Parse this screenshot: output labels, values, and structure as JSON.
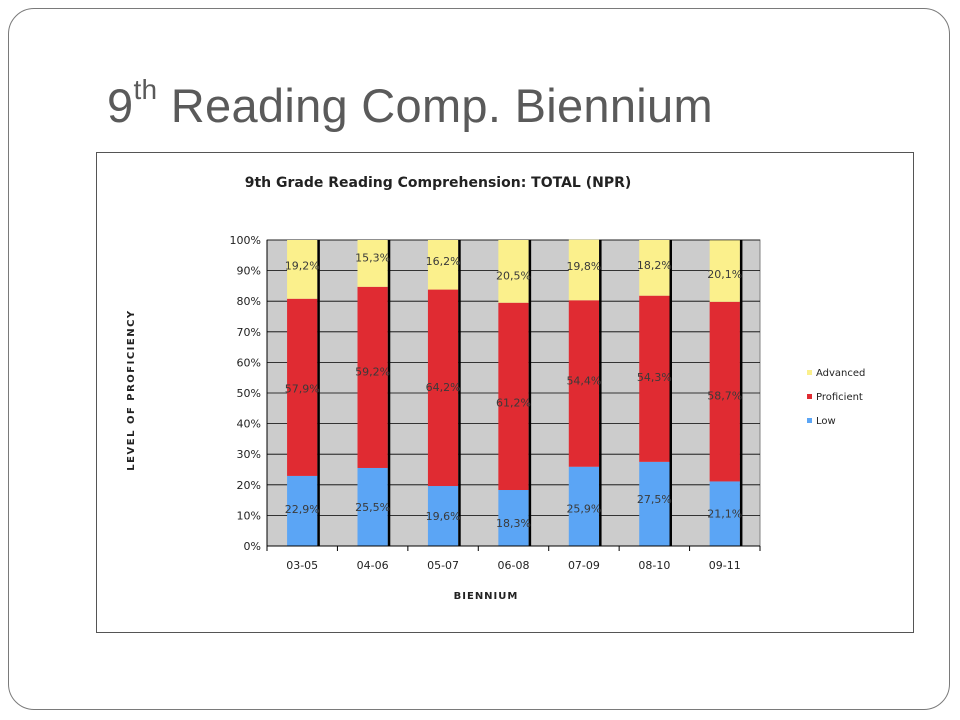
{
  "slide": {
    "title_main": "9",
    "title_sup": "th",
    "title_rest": " Reading Comp. Biennium"
  },
  "chart_data": {
    "type": "bar",
    "stacked": true,
    "percent_stacked": true,
    "title": "9th Grade Reading Comprehension:  TOTAL (NPR)",
    "xlabel": "BIENNIUM",
    "ylabel": "LEVEL OF PROFICIENCY",
    "ylim": [
      0,
      100
    ],
    "y_ticks": [
      "0%",
      "10%",
      "20%",
      "30%",
      "40%",
      "50%",
      "60%",
      "70%",
      "80%",
      "90%",
      "100%"
    ],
    "categories": [
      "03-05",
      "04-06",
      "05-07",
      "06-08",
      "07-09",
      "08-10",
      "09-11"
    ],
    "series": [
      {
        "name": "Low",
        "color": "#5ba5f5",
        "values": [
          22.9,
          25.5,
          19.6,
          18.3,
          25.9,
          27.5,
          21.1
        ],
        "labels": [
          "22,9%",
          "25,5%",
          "19,6%",
          "18,3%",
          "25,9%",
          "27,5%",
          "21,1%"
        ]
      },
      {
        "name": "Proficient",
        "color": "#e02b32",
        "values": [
          57.9,
          59.2,
          64.2,
          61.2,
          54.4,
          54.3,
          58.7
        ],
        "labels": [
          "57,9%",
          "59,2%",
          "64,2%",
          "61,2%",
          "54,4%",
          "54,3%",
          "58,7%"
        ]
      },
      {
        "name": "Advanced",
        "color": "#fbf08c",
        "values": [
          19.2,
          15.3,
          16.2,
          20.5,
          19.8,
          18.2,
          20.1
        ],
        "labels": [
          "19,2%",
          "15,3%",
          "16,2%",
          "20,5%",
          "19,8%",
          "18,2%",
          "20,1%"
        ]
      }
    ],
    "legend_order": [
      "Advanced",
      "Proficient",
      "Low"
    ],
    "legend_position": "right",
    "plot_background": "#cccccc",
    "grid": true
  }
}
